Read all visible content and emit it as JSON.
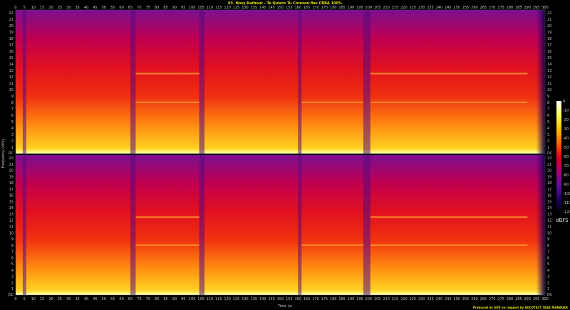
{
  "chart_data": {
    "type": "heatmap",
    "title": "03. Nosy Karbour - Te Quiero Tu Corazon.flac CBBA 100%",
    "xlabel": "Time (s)",
    "ylabel": "Frequency (kHz)",
    "xlim": [
      0,
      300
    ],
    "ylim": [
      0,
      22
    ],
    "x_ticks": [
      0,
      5,
      10,
      15,
      20,
      25,
      30,
      35,
      40,
      45,
      50,
      55,
      60,
      65,
      70,
      75,
      80,
      85,
      90,
      95,
      100,
      105,
      110,
      115,
      120,
      125,
      130,
      135,
      140,
      145,
      150,
      155,
      160,
      165,
      170,
      175,
      180,
      185,
      190,
      195,
      200,
      205,
      210,
      215,
      220,
      225,
      230,
      235,
      240,
      245,
      250,
      255,
      260,
      265,
      270,
      275,
      280,
      285,
      290,
      295,
      300
    ],
    "y_ticks": [
      1,
      2,
      3,
      4,
      5,
      6,
      7,
      8,
      9,
      10,
      11,
      12,
      13,
      14,
      15,
      16,
      17,
      18,
      19,
      20,
      21,
      22
    ],
    "y_tick_zero": "DC",
    "channels": 2,
    "colorbar": {
      "unit": "dBFS",
      "ticks": [
        0,
        -10,
        -20,
        -30,
        -40,
        -50,
        -60,
        -70,
        -80,
        -90,
        -100,
        -110,
        -120
      ],
      "colors": [
        "#ffffff",
        "#ffff60",
        "#ffc000",
        "#ff6000",
        "#e00020",
        "#b00070",
        "#6010a0",
        "#200060",
        "#000000"
      ]
    },
    "quiet_segments_s": [
      [
        4,
        6
      ],
      [
        65,
        68
      ],
      [
        104,
        107
      ],
      [
        160,
        162
      ],
      [
        197,
        201
      ],
      [
        295,
        300
      ]
    ],
    "tonal_lines": [
      {
        "freq_khz": 12.5,
        "spans_s": [
          [
            68,
            104
          ],
          [
            201,
            290
          ]
        ]
      },
      {
        "freq_khz": 8,
        "spans_s": [
          [
            68,
            104
          ],
          [
            162,
            197
          ],
          [
            201,
            290
          ]
        ]
      }
    ],
    "footer": "Produced by SOX on request by AUCDTECT TASK MANAGER"
  }
}
